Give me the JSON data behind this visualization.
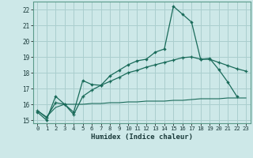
{
  "title": "",
  "xlabel": "Humidex (Indice chaleur)",
  "xlim": [
    -0.5,
    23.5
  ],
  "ylim": [
    14.8,
    22.5
  ],
  "yticks": [
    15,
    16,
    17,
    18,
    19,
    20,
    21,
    22
  ],
  "xticks": [
    0,
    1,
    2,
    3,
    4,
    5,
    6,
    7,
    8,
    9,
    10,
    11,
    12,
    13,
    14,
    15,
    16,
    17,
    18,
    19,
    20,
    21,
    22,
    23
  ],
  "bg_color": "#cde8e8",
  "grid_color": "#aacece",
  "line_color": "#1a6b5a",
  "line1_x": [
    0,
    1,
    2,
    3,
    4,
    5,
    6,
    7,
    8,
    9,
    10,
    11,
    12,
    13,
    14,
    15,
    16,
    17,
    18,
    19,
    20,
    21,
    22
  ],
  "line1_y": [
    15.5,
    15.0,
    16.5,
    16.0,
    15.5,
    17.5,
    17.25,
    17.2,
    17.8,
    18.15,
    18.5,
    18.75,
    18.85,
    19.3,
    19.5,
    22.2,
    21.7,
    21.2,
    18.85,
    18.9,
    18.2,
    17.4,
    16.5
  ],
  "line2_x": [
    0,
    1,
    2,
    3,
    4,
    5,
    6,
    7,
    8,
    9,
    10,
    11,
    12,
    13,
    14,
    15,
    16,
    17,
    18,
    19,
    20,
    21,
    22,
    23
  ],
  "line2_y": [
    15.6,
    15.15,
    16.1,
    16.0,
    15.35,
    16.5,
    16.9,
    17.2,
    17.45,
    17.7,
    18.0,
    18.15,
    18.35,
    18.5,
    18.65,
    18.8,
    18.95,
    19.0,
    18.85,
    18.85,
    18.65,
    18.45,
    18.25,
    18.1
  ],
  "line3_x": [
    0,
    1,
    2,
    3,
    4,
    5,
    6,
    7,
    8,
    9,
    10,
    11,
    12,
    13,
    14,
    15,
    16,
    17,
    18,
    19,
    20,
    21,
    22,
    23
  ],
  "line3_y": [
    15.6,
    15.2,
    15.8,
    16.0,
    16.0,
    16.0,
    16.05,
    16.05,
    16.1,
    16.1,
    16.15,
    16.15,
    16.2,
    16.2,
    16.2,
    16.25,
    16.25,
    16.3,
    16.35,
    16.35,
    16.35,
    16.4,
    16.4,
    16.4
  ]
}
